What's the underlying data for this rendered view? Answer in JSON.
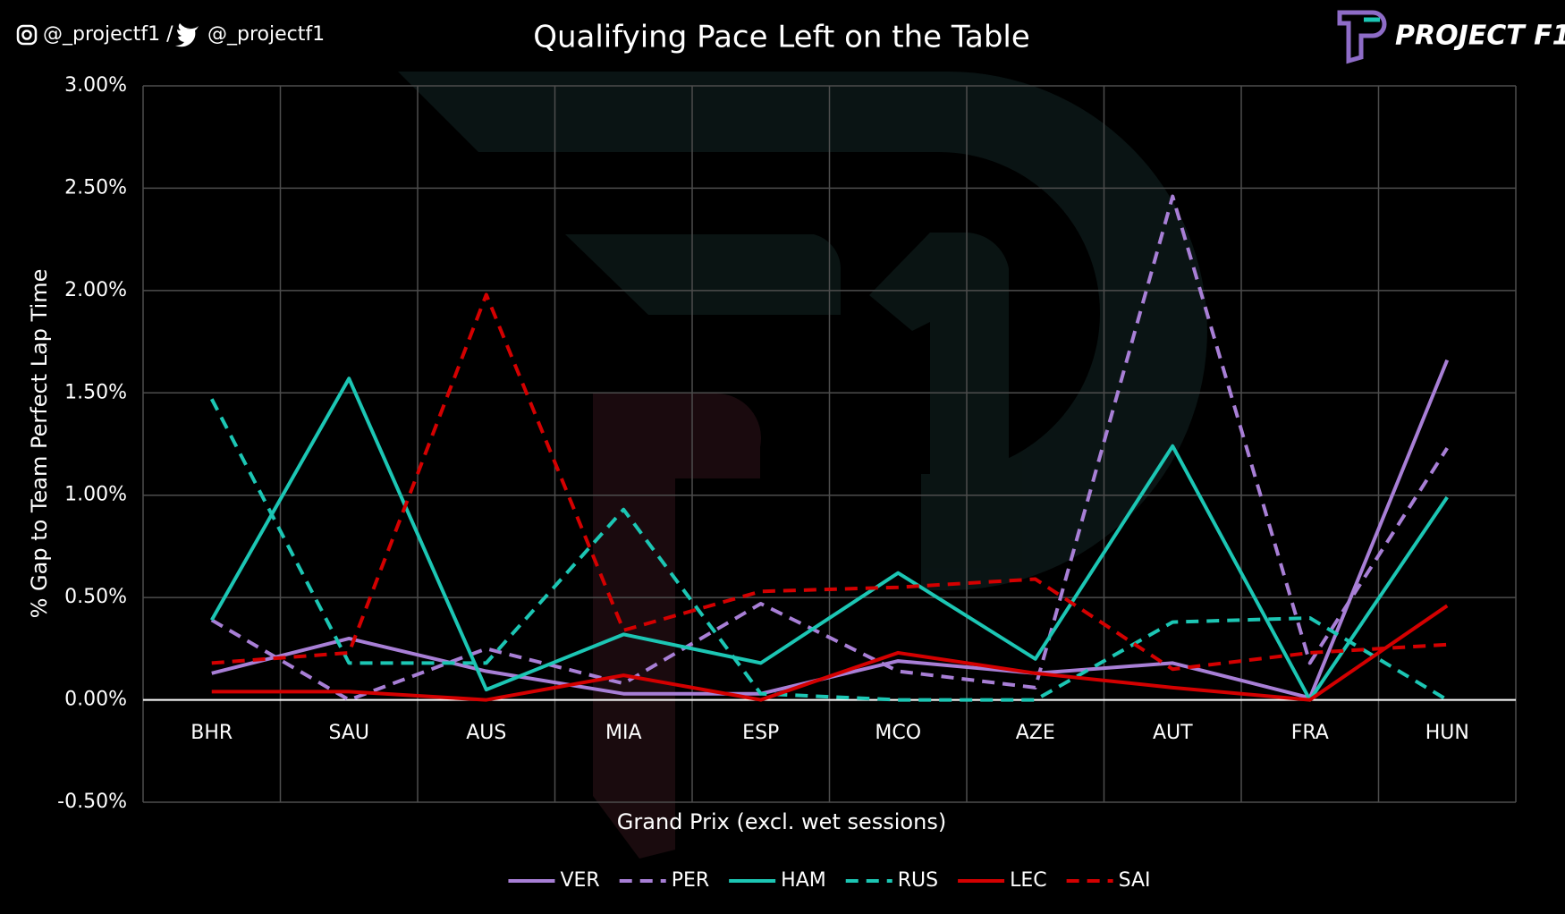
{
  "header": {
    "instagram": "@_projectf1 /",
    "twitter": "@_projectf1",
    "logo": "PROJECT F1"
  },
  "chart_data": {
    "type": "line",
    "title": "Qualifying Pace Left on the Table",
    "x_label": "Grand Prix (excl. wet sessions)",
    "y_label": "% Gap to Team Perfect Lap Time",
    "categories": [
      "BHR",
      "SAU",
      "AUS",
      "MIA",
      "ESP",
      "MCO",
      "AZE",
      "AUT",
      "FRA",
      "HUN"
    ],
    "series": [
      {
        "name": "VER",
        "color": "#a87fd6",
        "style": "solid",
        "values": [
          0.13,
          0.3,
          0.14,
          0.03,
          0.03,
          0.19,
          0.13,
          0.18,
          0.01,
          1.66
        ]
      },
      {
        "name": "PER",
        "color": "#a87fd6",
        "style": "dashed",
        "values": [
          0.39,
          0.0,
          0.25,
          0.08,
          0.47,
          0.14,
          0.06,
          2.46,
          0.18,
          1.23
        ]
      },
      {
        "name": "HAM",
        "color": "#1cc6b4",
        "style": "solid",
        "values": [
          0.39,
          1.57,
          0.05,
          0.32,
          0.18,
          0.62,
          0.2,
          1.24,
          0.0,
          0.99
        ]
      },
      {
        "name": "RUS",
        "color": "#1cc6b4",
        "style": "dashed",
        "values": [
          1.47,
          0.18,
          0.18,
          0.93,
          0.03,
          0.0,
          0.0,
          0.38,
          0.4,
          0.0
        ]
      },
      {
        "name": "LEC",
        "color": "#d40000",
        "style": "solid",
        "values": [
          0.04,
          0.04,
          0.0,
          0.12,
          0.0,
          0.23,
          0.13,
          0.06,
          0.0,
          0.46
        ]
      },
      {
        "name": "SAI",
        "color": "#d40000",
        "style": "dashed",
        "values": [
          0.18,
          0.23,
          1.98,
          0.34,
          0.53,
          0.55,
          0.59,
          0.15,
          0.23,
          0.27
        ]
      }
    ],
    "ylim": [
      -0.5,
      3
    ],
    "yticks": [
      {
        "value": -0.5,
        "label": "-0.50%"
      },
      {
        "value": 0,
        "label": "0.00%"
      },
      {
        "value": 0.5,
        "label": "0.50%"
      },
      {
        "value": 1,
        "label": "1.00%"
      },
      {
        "value": 1.5,
        "label": "1.50%"
      },
      {
        "value": 2,
        "label": "2.00%"
      },
      {
        "value": 2.5,
        "label": "2.50%"
      },
      {
        "value": 3,
        "label": "3.00%"
      }
    ],
    "grid": true,
    "legend": "bottom"
  }
}
